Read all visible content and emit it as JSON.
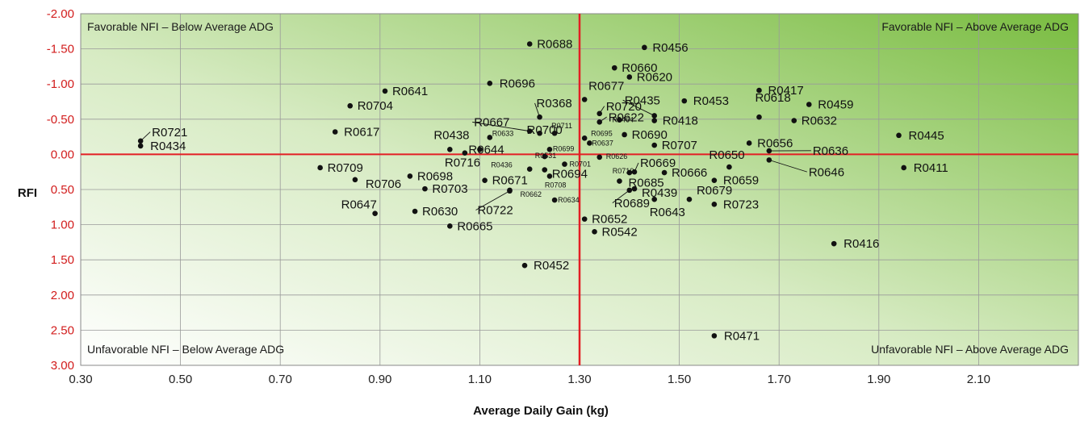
{
  "chart_data": {
    "type": "scatter",
    "xlabel": "Average Daily Gain (kg)",
    "ylabel": "RFI",
    "xlim": [
      0.3,
      2.3
    ],
    "ylim": [
      -2.0,
      3.0
    ],
    "y_inverted": true,
    "grid": true,
    "x_ticks": [
      "0.30",
      "0.50",
      "0.70",
      "0.90",
      "1.10",
      "1.30",
      "1.50",
      "1.70",
      "1.90",
      "2.10"
    ],
    "y_ticks": [
      "-2.00",
      "-1.50",
      "-1.00",
      "-0.50",
      "0.00",
      "0.50",
      "1.00",
      "1.50",
      "2.00",
      "2.50",
      "3.00"
    ],
    "reference_lines": {
      "x": 1.3,
      "y": 0.0,
      "color": "#e31e24"
    },
    "background_gradient": [
      "#ffffff",
      "#79bc40"
    ],
    "point_color": "#111111",
    "quadrant_labels": {
      "top_left": "Favorable NFI – Below Average ADG",
      "top_right": "Favorable NFI – Above Average ADG",
      "bottom_left": "Unfavorable NFI – Below Average ADG",
      "bottom_right": "Unfavorable NFI – Above Average ADG"
    },
    "points": [
      {
        "label": "R0721",
        "x": 0.42,
        "y": -0.19
      },
      {
        "label": "R0434",
        "x": 0.42,
        "y": -0.12
      },
      {
        "label": "R0704",
        "x": 0.84,
        "y": -0.69
      },
      {
        "label": "R0641",
        "x": 0.91,
        "y": -0.9
      },
      {
        "label": "R0617",
        "x": 0.81,
        "y": -0.32
      },
      {
        "label": "R0709",
        "x": 0.78,
        "y": 0.19
      },
      {
        "label": "R0706",
        "x": 0.85,
        "y": 0.36
      },
      {
        "label": "R0698",
        "x": 0.96,
        "y": 0.31
      },
      {
        "label": "R0703",
        "x": 0.99,
        "y": 0.49
      },
      {
        "label": "R0647",
        "x": 0.89,
        "y": 0.84
      },
      {
        "label": "R0630",
        "x": 0.97,
        "y": 0.81
      },
      {
        "label": "R0665",
        "x": 1.04,
        "y": 1.02
      },
      {
        "label": "R0438",
        "x": 1.04,
        "y": -0.07
      },
      {
        "label": "R0644",
        "x": 1.1,
        "y": -0.07
      },
      {
        "label": "R0716",
        "x": 1.07,
        "y": -0.02
      },
      {
        "label": "R0633",
        "x": 1.12,
        "y": -0.24
      },
      {
        "label": "R0696",
        "x": 1.12,
        "y": -1.01
      },
      {
        "label": "R0667",
        "x": 1.2,
        "y": -0.33
      },
      {
        "label": "R0368",
        "x": 1.22,
        "y": -0.53
      },
      {
        "label": "R0688",
        "x": 1.2,
        "y": -1.57
      },
      {
        "label": "R0700",
        "x": 1.22,
        "y": -0.3
      },
      {
        "label": "R0711",
        "x": 1.25,
        "y": -0.3
      },
      {
        "label": "R0699",
        "x": 1.24,
        "y": -0.07
      },
      {
        "label": "R0531",
        "x": 1.23,
        "y": 0.03
      },
      {
        "label": "R0436",
        "x": 1.2,
        "y": 0.21
      },
      {
        "label": "R0671",
        "x": 1.11,
        "y": 0.37
      },
      {
        "label": "R0701",
        "x": 1.27,
        "y": 0.14
      },
      {
        "label": "R0694",
        "x": 1.23,
        "y": 0.22
      },
      {
        "label": "R0708",
        "x": 1.24,
        "y": 0.31
      },
      {
        "label": "R0662",
        "x": 1.16,
        "y": 0.51
      },
      {
        "label": "R0722",
        "x": 1.16,
        "y": 0.52
      },
      {
        "label": "R0634",
        "x": 1.25,
        "y": 0.65
      },
      {
        "label": "R0452",
        "x": 1.19,
        "y": 1.58
      },
      {
        "label": "R0677",
        "x": 1.31,
        "y": -0.78
      },
      {
        "label": "R0720",
        "x": 1.34,
        "y": -0.58
      },
      {
        "label": "R0622",
        "x": 1.34,
        "y": -0.46
      },
      {
        "label": "R0695",
        "x": 1.31,
        "y": -0.23
      },
      {
        "label": "R0637",
        "x": 1.32,
        "y": -0.16
      },
      {
        "label": "R0626",
        "x": 1.34,
        "y": 0.04
      },
      {
        "label": "R0660",
        "x": 1.37,
        "y": -1.23
      },
      {
        "label": "R0620",
        "x": 1.4,
        "y": -1.1
      },
      {
        "label": "R0456",
        "x": 1.43,
        "y": -1.52
      },
      {
        "label": "R0464",
        "x": 1.38,
        "y": -0.49
      },
      {
        "label": "R0690",
        "x": 1.39,
        "y": -0.28
      },
      {
        "label": "R0435",
        "x": 1.45,
        "y": -0.55
      },
      {
        "label": "R0418",
        "x": 1.45,
        "y": -0.48
      },
      {
        "label": "R0453",
        "x": 1.51,
        "y": -0.76
      },
      {
        "label": "R0707",
        "x": 1.45,
        "y": -0.13
      },
      {
        "label": "R0719",
        "x": 1.4,
        "y": 0.26
      },
      {
        "label": "R0669",
        "x": 1.41,
        "y": 0.25
      },
      {
        "label": "R0685",
        "x": 1.38,
        "y": 0.38
      },
      {
        "label": "R0689",
        "x": 1.4,
        "y": 0.51
      },
      {
        "label": "R0439",
        "x": 1.41,
        "y": 0.49
      },
      {
        "label": "R0643",
        "x": 1.45,
        "y": 0.64
      },
      {
        "label": "R0666",
        "x": 1.47,
        "y": 0.26
      },
      {
        "label": "R0652",
        "x": 1.31,
        "y": 0.92
      },
      {
        "label": "R0542",
        "x": 1.33,
        "y": 1.1
      },
      {
        "label": "R0679",
        "x": 1.52,
        "y": 0.64
      },
      {
        "label": "R0723",
        "x": 1.57,
        "y": 0.71
      },
      {
        "label": "R0650",
        "x": 1.6,
        "y": 0.18
      },
      {
        "label": "R0659",
        "x": 1.57,
        "y": 0.37
      },
      {
        "label": "R0656",
        "x": 1.64,
        "y": -0.16
      },
      {
        "label": "R0636",
        "x": 1.68,
        "y": -0.05
      },
      {
        "label": "R0646",
        "x": 1.68,
        "y": 0.08
      },
      {
        "label": "R0417",
        "x": 1.66,
        "y": -0.91
      },
      {
        "label": "R0618",
        "x": 1.66,
        "y": -0.53
      },
      {
        "label": "R0459",
        "x": 1.76,
        "y": -0.71
      },
      {
        "label": "R0632",
        "x": 1.73,
        "y": -0.48
      },
      {
        "label": "R0445",
        "x": 1.94,
        "y": -0.27
      },
      {
        "label": "R0411",
        "x": 1.95,
        "y": 0.19
      },
      {
        "label": "R0416",
        "x": 1.81,
        "y": 1.27
      },
      {
        "label": "R0471",
        "x": 1.57,
        "y": 2.58
      }
    ]
  }
}
